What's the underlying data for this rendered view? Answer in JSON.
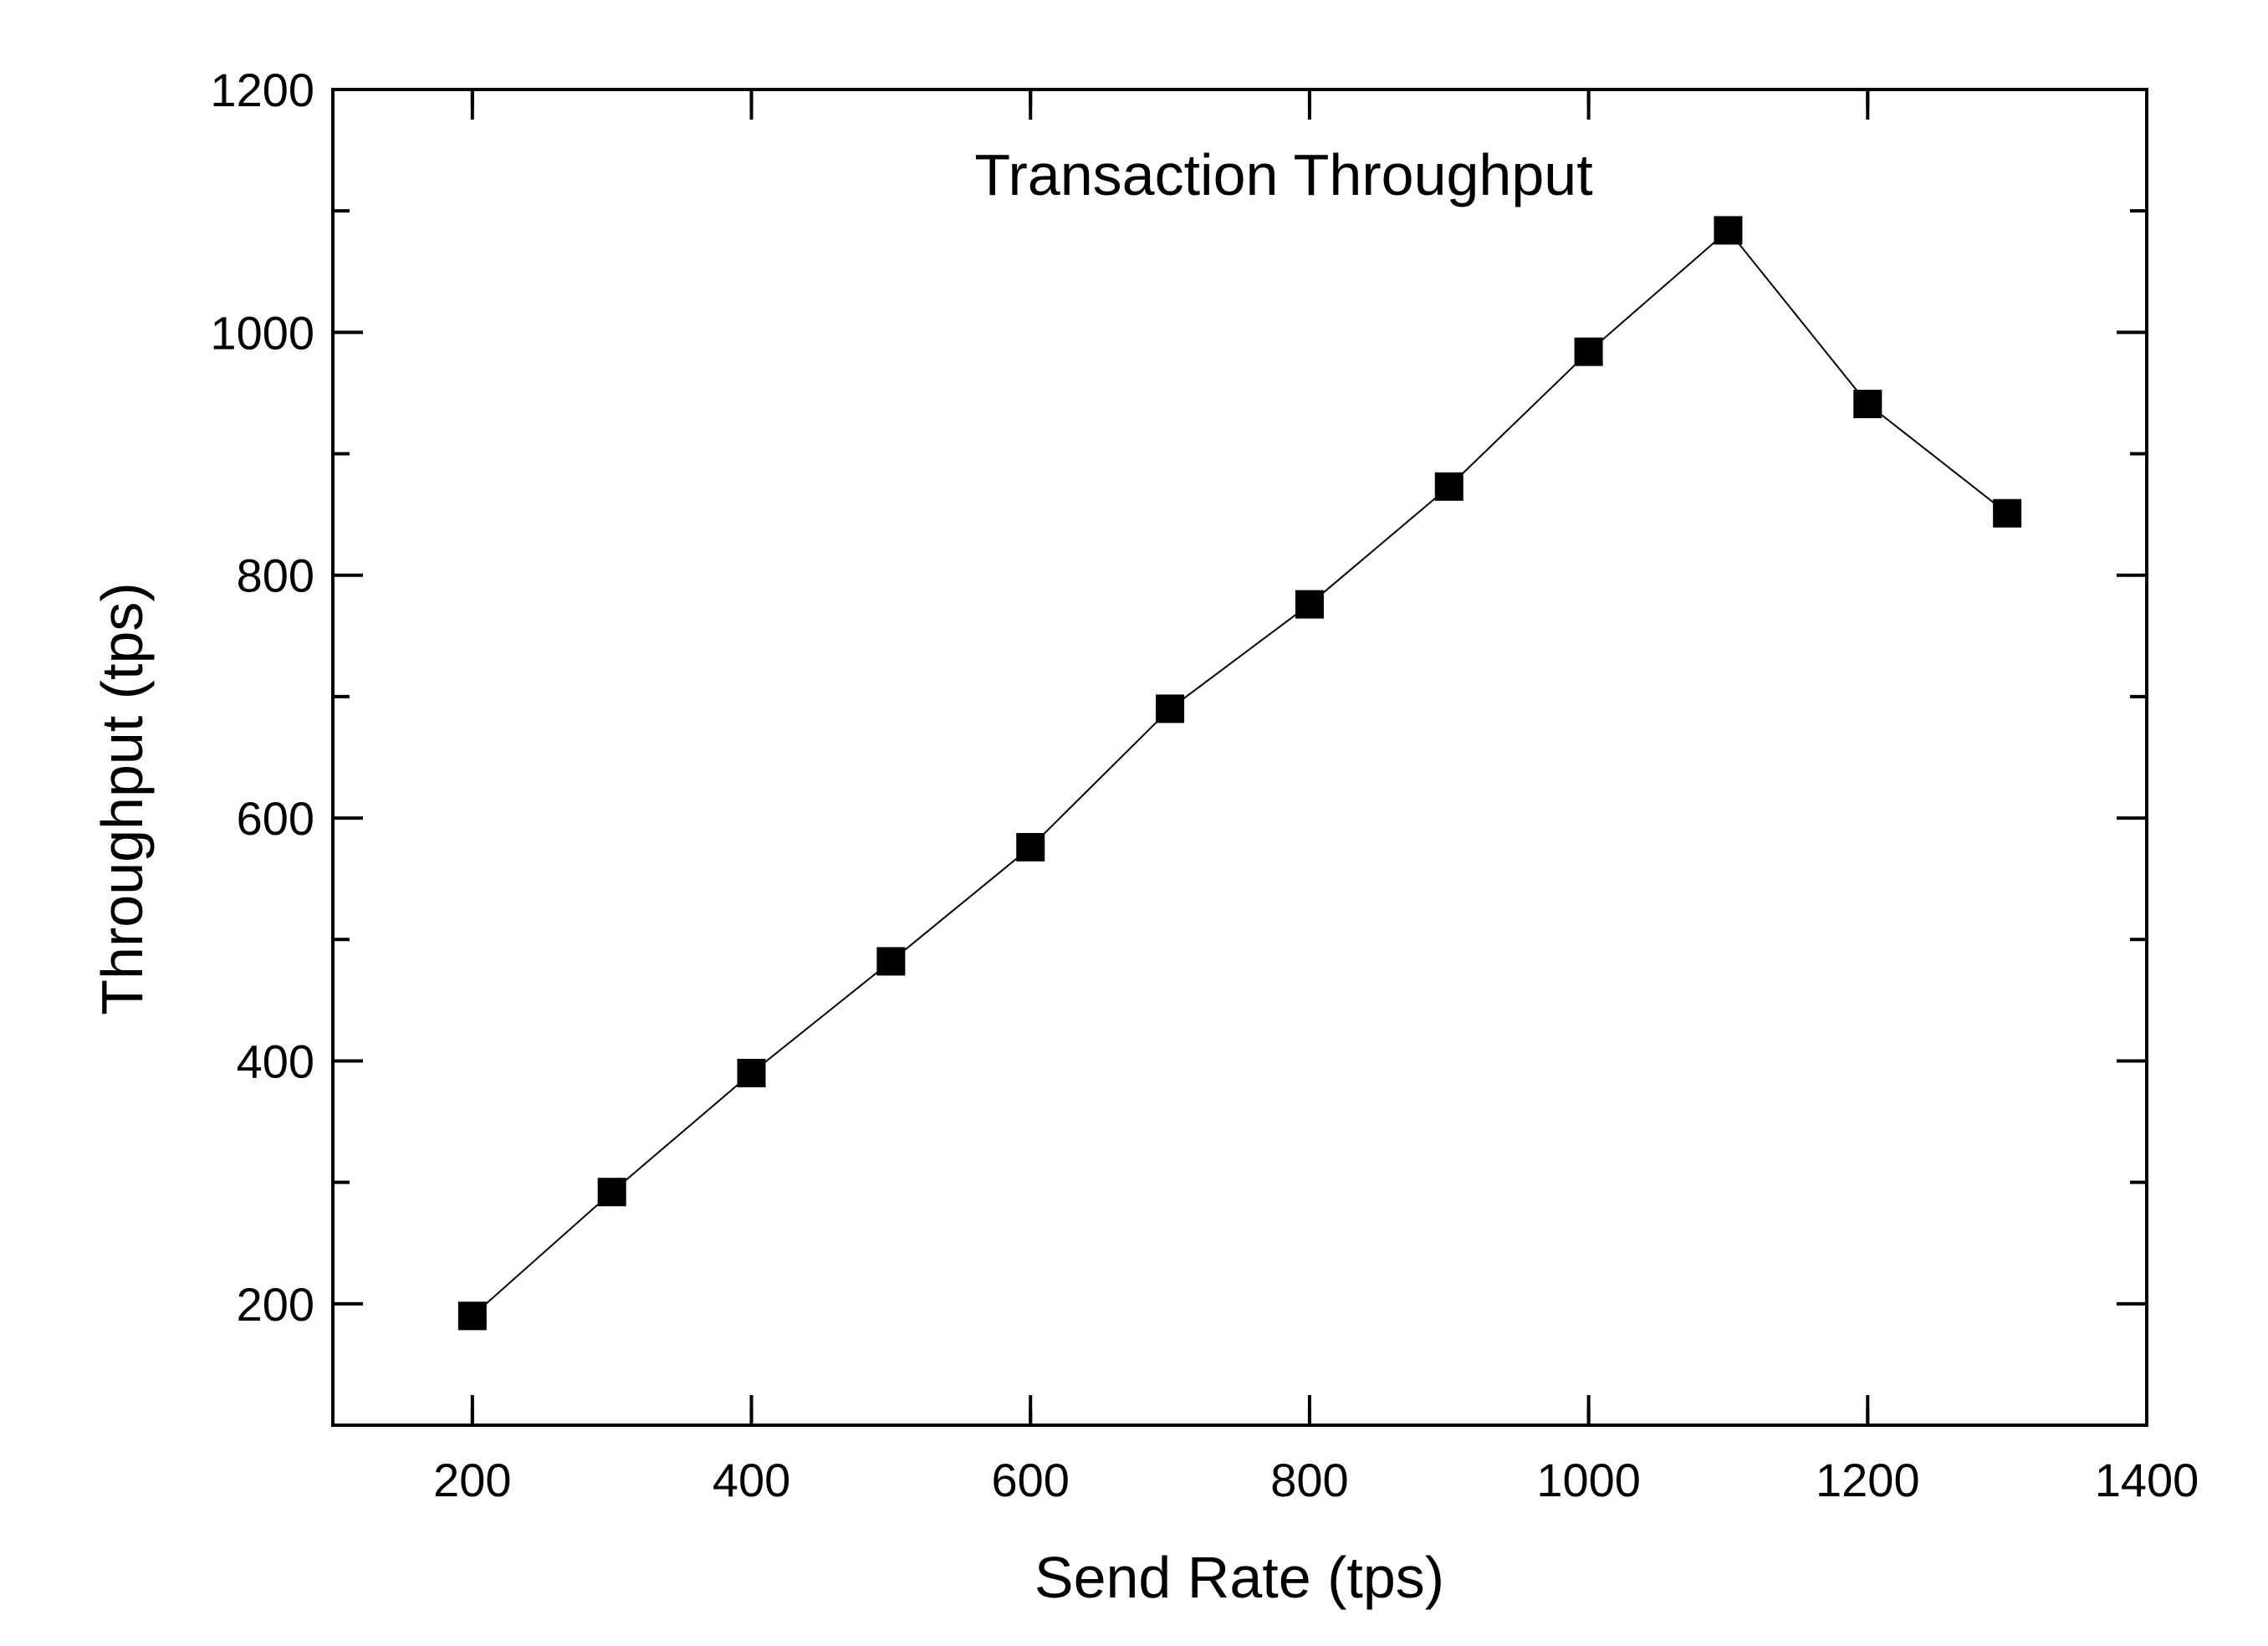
{
  "chart_data": {
    "type": "line",
    "title": "Transaction Throughput",
    "xlabel": "Send Rate (tps)",
    "ylabel": "Throughput (tps)",
    "xlim": [
      100,
      1400
    ],
    "ylim": [
      100,
      1200
    ],
    "x_ticks": [
      200,
      400,
      600,
      800,
      1000,
      1200,
      1400
    ],
    "y_ticks": [
      200,
      400,
      600,
      800,
      1000,
      1200
    ],
    "grid": false,
    "legend": null,
    "marker": "square",
    "color": "#000000",
    "x": [
      200,
      300,
      400,
      500,
      600,
      700,
      800,
      900,
      1000,
      1100,
      1200,
      1300
    ],
    "series": [
      {
        "name": "Transaction Throughput",
        "values": [
          190,
          292,
          390,
          482,
          576,
          690,
          776,
          873,
          984,
          1084,
          941,
          851
        ]
      }
    ]
  }
}
